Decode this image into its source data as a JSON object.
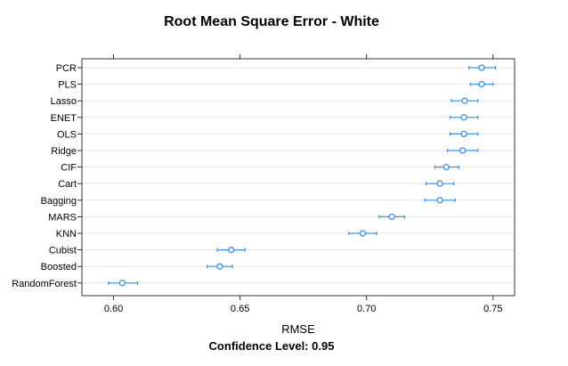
{
  "chart_data": {
    "type": "dotplot",
    "title": "Root Mean Square Error - White",
    "xlabel": "RMSE",
    "subtitle": "Confidence Level: 0.95",
    "xlim": [
      0.5875,
      0.7585
    ],
    "xticks": [
      0.6,
      0.65,
      0.7,
      0.75
    ],
    "xtick_labels": [
      "0.60",
      "0.65",
      "0.70",
      "0.75"
    ],
    "grid": "horizontal-rows",
    "point_color": "#3b8fef",
    "models": [
      {
        "name": "PCR",
        "estimate": 0.7455,
        "lower": 0.7405,
        "upper": 0.751
      },
      {
        "name": "PLS",
        "estimate": 0.7455,
        "lower": 0.741,
        "upper": 0.75
      },
      {
        "name": "Lasso",
        "estimate": 0.7388,
        "lower": 0.7335,
        "upper": 0.744
      },
      {
        "name": "ENET",
        "estimate": 0.7385,
        "lower": 0.733,
        "upper": 0.744
      },
      {
        "name": "OLS",
        "estimate": 0.7385,
        "lower": 0.733,
        "upper": 0.744
      },
      {
        "name": "Ridge",
        "estimate": 0.738,
        "lower": 0.732,
        "upper": 0.744
      },
      {
        "name": "CIF",
        "estimate": 0.7315,
        "lower": 0.727,
        "upper": 0.7365
      },
      {
        "name": "Cart",
        "estimate": 0.729,
        "lower": 0.7235,
        "upper": 0.7345
      },
      {
        "name": "Bagging",
        "estimate": 0.729,
        "lower": 0.723,
        "upper": 0.735
      },
      {
        "name": "MARS",
        "estimate": 0.71,
        "lower": 0.705,
        "upper": 0.715
      },
      {
        "name": "KNN",
        "estimate": 0.6985,
        "lower": 0.693,
        "upper": 0.704
      },
      {
        "name": "Cubist",
        "estimate": 0.6465,
        "lower": 0.641,
        "upper": 0.652
      },
      {
        "name": "Boosted",
        "estimate": 0.642,
        "lower": 0.637,
        "upper": 0.647
      },
      {
        "name": "RandomForest",
        "estimate": 0.6035,
        "lower": 0.598,
        "upper": 0.6095
      }
    ]
  }
}
